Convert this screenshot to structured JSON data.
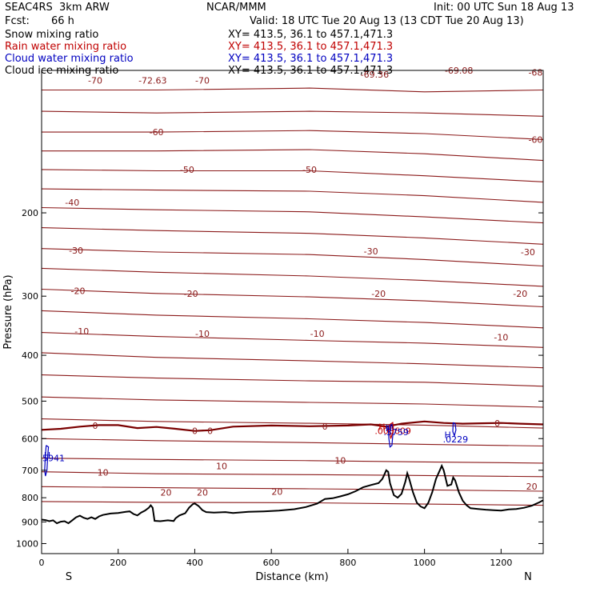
{
  "header": {
    "model": "SEAC4RS  3km ARW",
    "org": "NCAR/MMM",
    "init": "Init: 00 UTC Sun 18 Aug 13",
    "fcst_label": "Fcst:",
    "fcst_value": "66 h",
    "valid": "Valid: 18 UTC Tue 20 Aug 13 (13 CDT Tue 20 Aug 13)",
    "fields": [
      {
        "name": "Snow mixing ratio",
        "xy": "XY= 413.5, 36.1 to 457.1,471.3",
        "color": "#000000"
      },
      {
        "name": "Rain water mixing ratio",
        "xy": "XY= 413.5, 36.1 to 457.1,471.3",
        "color": "#c00000"
      },
      {
        "name": "Cloud water mixing ratio",
        "xy": "XY= 413.5, 36.1 to 457.1,471.3",
        "color": "#0000c0"
      },
      {
        "name": "Cloud ice mixing ratio",
        "xy": "XY= 413.5, 36.1 to 457.1,471.3",
        "color": "#000000"
      }
    ]
  },
  "chart_data": {
    "type": "line",
    "xlabel": "Distance (km)",
    "ylabel": "Pressure (hPa)",
    "xlim": [
      0,
      1310
    ],
    "ylim": [
      1050,
      100
    ],
    "y_scale": "log",
    "x_ticks": [
      0,
      200,
      400,
      600,
      800,
      1000,
      1200
    ],
    "y_ticks": [
      200,
      300,
      400,
      500,
      600,
      700,
      800,
      900,
      1000
    ],
    "x_end_labels": {
      "left": "S",
      "right": "N"
    },
    "isotherm_color": "#8b1a1a",
    "isotherms": [
      {
        "value": -70,
        "p": [
          [
            0,
            110
          ],
          [
            300,
            110
          ],
          [
            700,
            109
          ],
          [
            1000,
            111
          ],
          [
            1310,
            110
          ]
        ]
      },
      {
        "value": -65,
        "p": [
          [
            0,
            122
          ],
          [
            300,
            123
          ],
          [
            700,
            122
          ],
          [
            1000,
            123
          ],
          [
            1310,
            125
          ]
        ]
      },
      {
        "value": -60,
        "p": [
          [
            0,
            135
          ],
          [
            300,
            135
          ],
          [
            700,
            134
          ],
          [
            1000,
            136
          ],
          [
            1310,
            140
          ]
        ]
      },
      {
        "value": -55,
        "p": [
          [
            0,
            148
          ],
          [
            300,
            148
          ],
          [
            700,
            147
          ],
          [
            1000,
            150
          ],
          [
            1310,
            155
          ]
        ]
      },
      {
        "value": -50,
        "p": [
          [
            0,
            162
          ],
          [
            300,
            163
          ],
          [
            700,
            163
          ],
          [
            1000,
            167
          ],
          [
            1310,
            172
          ]
        ]
      },
      {
        "value": -45,
        "p": [
          [
            0,
            178
          ],
          [
            300,
            179
          ],
          [
            700,
            180
          ],
          [
            1000,
            184
          ],
          [
            1310,
            190
          ]
        ]
      },
      {
        "value": -40,
        "p": [
          [
            0,
            195
          ],
          [
            300,
            197
          ],
          [
            700,
            199
          ],
          [
            1000,
            204
          ],
          [
            1310,
            210
          ]
        ]
      },
      {
        "value": -35,
        "p": [
          [
            0,
            215
          ],
          [
            300,
            218
          ],
          [
            700,
            221
          ],
          [
            1000,
            226
          ],
          [
            1310,
            233
          ]
        ]
      },
      {
        "value": -30,
        "p": [
          [
            0,
            238
          ],
          [
            300,
            242
          ],
          [
            700,
            245
          ],
          [
            1000,
            251
          ],
          [
            1310,
            259
          ]
        ]
      },
      {
        "value": -25,
        "p": [
          [
            0,
            262
          ],
          [
            300,
            267
          ],
          [
            700,
            272
          ],
          [
            1000,
            278
          ],
          [
            1310,
            286
          ]
        ]
      },
      {
        "value": -20,
        "p": [
          [
            0,
            290
          ],
          [
            300,
            296
          ],
          [
            700,
            301
          ],
          [
            1000,
            307
          ],
          [
            1310,
            316
          ]
        ]
      },
      {
        "value": -15,
        "p": [
          [
            0,
            322
          ],
          [
            300,
            329
          ],
          [
            700,
            335
          ],
          [
            1000,
            341
          ],
          [
            1310,
            350
          ]
        ]
      },
      {
        "value": -10,
        "p": [
          [
            0,
            358
          ],
          [
            300,
            365
          ],
          [
            700,
            372
          ],
          [
            1000,
            377
          ],
          [
            1310,
            385
          ]
        ]
      },
      {
        "value": -5,
        "p": [
          [
            0,
            395
          ],
          [
            300,
            404
          ],
          [
            700,
            411
          ],
          [
            1000,
            417
          ],
          [
            1310,
            425
          ]
        ]
      },
      {
        "value": 0,
        "p": [
          [
            0,
            440
          ],
          [
            300,
            447
          ],
          [
            700,
            453
          ],
          [
            1000,
            456
          ],
          [
            1310,
            465
          ]
        ]
      },
      {
        "value": 5,
        "p": [
          [
            0,
            490
          ],
          [
            300,
            497
          ],
          [
            700,
            503
          ],
          [
            1000,
            507
          ],
          [
            1310,
            515
          ]
        ]
      },
      {
        "value": 10,
        "p": [
          [
            0,
            545
          ],
          [
            300,
            552
          ],
          [
            700,
            557
          ],
          [
            1000,
            562
          ],
          [
            1310,
            570
          ]
        ]
      },
      {
        "value": 15,
        "p": [
          [
            0,
            600
          ],
          [
            300,
            606
          ],
          [
            700,
            612
          ],
          [
            1000,
            617
          ],
          [
            1310,
            622
          ]
        ]
      },
      {
        "value": 20,
        "p": [
          [
            0,
            660
          ],
          [
            300,
            664
          ],
          [
            700,
            668
          ],
          [
            1000,
            672
          ],
          [
            1310,
            676
          ]
        ]
      },
      {
        "value": 25,
        "p": [
          [
            0,
            705
          ],
          [
            300,
            712
          ],
          [
            700,
            715
          ],
          [
            1000,
            718
          ],
          [
            1310,
            722
          ]
        ]
      },
      {
        "value": 30,
        "p": [
          [
            0,
            758
          ],
          [
            300,
            762
          ],
          [
            700,
            766
          ],
          [
            1000,
            770
          ],
          [
            1310,
            775
          ]
        ]
      },
      {
        "value": 35,
        "p": [
          [
            0,
            815
          ],
          [
            300,
            818
          ],
          [
            700,
            820
          ],
          [
            1000,
            825
          ],
          [
            1310,
            830
          ]
        ]
      }
    ],
    "isotherm_labels": [
      {
        "text": "-70",
        "x": 140,
        "p": 105
      },
      {
        "text": "-72.63",
        "x": 290,
        "p": 105
      },
      {
        "text": "-70",
        "x": 420,
        "p": 105
      },
      {
        "text": "-69.36",
        "x": 870,
        "p": 102
      },
      {
        "text": "-69.08",
        "x": 1090,
        "p": 100
      },
      {
        "text": "-68",
        "x": 1290,
        "p": 101
      },
      {
        "text": "-60",
        "x": 300,
        "p": 135
      },
      {
        "text": "-60",
        "x": 1290,
        "p": 140
      },
      {
        "text": "-50",
        "x": 380,
        "p": 162
      },
      {
        "text": "-50",
        "x": 700,
        "p": 162
      },
      {
        "text": "-40",
        "x": 80,
        "p": 190
      },
      {
        "text": "-30",
        "x": 90,
        "p": 240
      },
      {
        "text": "-30",
        "x": 860,
        "p": 241
      },
      {
        "text": "-30",
        "x": 1270,
        "p": 242
      },
      {
        "text": "-20",
        "x": 95,
        "p": 292
      },
      {
        "text": "-20",
        "x": 390,
        "p": 296
      },
      {
        "text": "-20",
        "x": 880,
        "p": 296
      },
      {
        "text": "-20",
        "x": 1250,
        "p": 296
      },
      {
        "text": "-10",
        "x": 105,
        "p": 356
      },
      {
        "text": "-10",
        "x": 420,
        "p": 360
      },
      {
        "text": "-10",
        "x": 720,
        "p": 360
      },
      {
        "text": "-10",
        "x": 1200,
        "p": 366
      },
      {
        "text": "0",
        "x": 140,
        "p": 563
      },
      {
        "text": "0",
        "x": 400,
        "p": 578
      },
      {
        "text": "0",
        "x": 440,
        "p": 578
      },
      {
        "text": "0",
        "x": 740,
        "p": 565
      },
      {
        "text": "0",
        "x": 1190,
        "p": 557
      },
      {
        "text": "10",
        "x": 160,
        "p": 707
      },
      {
        "text": "10",
        "x": 470,
        "p": 685
      },
      {
        "text": "10",
        "x": 780,
        "p": 667
      },
      {
        "text": "20",
        "x": 325,
        "p": 779
      },
      {
        "text": "20",
        "x": 420,
        "p": 780
      },
      {
        "text": "20",
        "x": 615,
        "p": 776
      },
      {
        "text": "20",
        "x": 1280,
        "p": 757
      }
    ],
    "freezing_level": [
      [
        0,
        575
      ],
      [
        50,
        572
      ],
      [
        100,
        566
      ],
      [
        150,
        562
      ],
      [
        200,
        562
      ],
      [
        250,
        570
      ],
      [
        300,
        567
      ],
      [
        350,
        572
      ],
      [
        400,
        578
      ],
      [
        440,
        576
      ],
      [
        500,
        566
      ],
      [
        600,
        563
      ],
      [
        700,
        565
      ],
      [
        800,
        563
      ],
      [
        860,
        560
      ],
      [
        900,
        566
      ],
      [
        940,
        558
      ],
      [
        1000,
        552
      ],
      [
        1050,
        556
      ],
      [
        1100,
        558
      ],
      [
        1150,
        557
      ],
      [
        1200,
        556
      ],
      [
        1250,
        558
      ],
      [
        1310,
        560
      ]
    ],
    "terrain": [
      [
        0,
        890
      ],
      [
        10,
        892
      ],
      [
        20,
        897
      ],
      [
        30,
        893
      ],
      [
        40,
        906
      ],
      [
        50,
        899
      ],
      [
        60,
        897
      ],
      [
        70,
        906
      ],
      [
        80,
        893
      ],
      [
        90,
        880
      ],
      [
        100,
        873
      ],
      [
        110,
        882
      ],
      [
        120,
        887
      ],
      [
        130,
        880
      ],
      [
        140,
        887
      ],
      [
        150,
        876
      ],
      [
        160,
        870
      ],
      [
        180,
        864
      ],
      [
        200,
        862
      ],
      [
        220,
        857
      ],
      [
        230,
        855
      ],
      [
        240,
        866
      ],
      [
        250,
        872
      ],
      [
        260,
        860
      ],
      [
        270,
        852
      ],
      [
        280,
        840
      ],
      [
        285,
        830
      ],
      [
        290,
        840
      ],
      [
        295,
        895
      ],
      [
        310,
        897
      ],
      [
        330,
        893
      ],
      [
        345,
        896
      ],
      [
        350,
        884
      ],
      [
        360,
        872
      ],
      [
        375,
        863
      ],
      [
        385,
        840
      ],
      [
        395,
        825
      ],
      [
        400,
        823
      ],
      [
        410,
        833
      ],
      [
        420,
        850
      ],
      [
        430,
        858
      ],
      [
        450,
        860
      ],
      [
        480,
        858
      ],
      [
        500,
        862
      ],
      [
        540,
        857
      ],
      [
        580,
        855
      ],
      [
        620,
        852
      ],
      [
        660,
        846
      ],
      [
        690,
        837
      ],
      [
        720,
        823
      ],
      [
        740,
        805
      ],
      [
        760,
        802
      ],
      [
        780,
        795
      ],
      [
        800,
        787
      ],
      [
        820,
        775
      ],
      [
        840,
        760
      ],
      [
        860,
        752
      ],
      [
        880,
        745
      ],
      [
        890,
        730
      ],
      [
        895,
        715
      ],
      [
        900,
        700
      ],
      [
        905,
        705
      ],
      [
        910,
        745
      ],
      [
        920,
        790
      ],
      [
        930,
        800
      ],
      [
        940,
        785
      ],
      [
        950,
        740
      ],
      [
        955,
        710
      ],
      [
        960,
        730
      ],
      [
        970,
        780
      ],
      [
        980,
        820
      ],
      [
        990,
        835
      ],
      [
        1000,
        842
      ],
      [
        1010,
        820
      ],
      [
        1020,
        780
      ],
      [
        1030,
        730
      ],
      [
        1040,
        700
      ],
      [
        1045,
        685
      ],
      [
        1050,
        700
      ],
      [
        1060,
        755
      ],
      [
        1070,
        750
      ],
      [
        1075,
        725
      ],
      [
        1080,
        735
      ],
      [
        1090,
        780
      ],
      [
        1100,
        812
      ],
      [
        1110,
        830
      ],
      [
        1120,
        842
      ],
      [
        1140,
        845
      ],
      [
        1160,
        848
      ],
      [
        1180,
        850
      ],
      [
        1200,
        852
      ],
      [
        1220,
        847
      ],
      [
        1240,
        845
      ],
      [
        1260,
        840
      ],
      [
        1280,
        832
      ],
      [
        1300,
        818
      ],
      [
        1310,
        810
      ]
    ],
    "annotations": [
      {
        "text": "H",
        "x": 6,
        "p": 650,
        "color": "#0000c0"
      },
      {
        "text": "5941",
        "x": 2,
        "p": 660,
        "color": "#0000c0"
      },
      {
        "text": "H",
        "x": 880,
        "p": 567,
        "color": "#c00000"
      },
      {
        "text": ".003609",
        "x": 870,
        "p": 578,
        "color": "#c00000"
      },
      {
        "text": "H",
        "x": 898,
        "p": 570,
        "color": "#0000c0"
      },
      {
        "text": ".3759",
        "x": 893,
        "p": 581,
        "color": "#0000c0"
      },
      {
        "text": "H",
        "x": 1052,
        "p": 589,
        "color": "#0000c0"
      },
      {
        "text": ".0229",
        "x": 1048,
        "p": 602,
        "color": "#0000c0"
      }
    ],
    "cloud_contours": [
      {
        "color": "#0000c0",
        "p": [
          [
            12,
            620
          ],
          [
            18,
            625
          ],
          [
            16,
            650
          ],
          [
            14,
            700
          ],
          [
            10,
            720
          ],
          [
            8,
            700
          ],
          [
            10,
            650
          ],
          [
            12,
            620
          ]
        ]
      },
      {
        "color": "#0000c0",
        "p": [
          [
            905,
            565
          ],
          [
            915,
            560
          ],
          [
            918,
            580
          ],
          [
            915,
            620
          ],
          [
            910,
            625
          ],
          [
            907,
            600
          ],
          [
            905,
            565
          ]
        ]
      },
      {
        "color": "#c00000",
        "p": [
          [
            910,
            560
          ],
          [
            917,
            555
          ],
          [
            919,
            575
          ],
          [
            912,
            600
          ],
          [
            908,
            575
          ],
          [
            910,
            560
          ]
        ]
      },
      {
        "color": "#0000c0",
        "p": [
          [
            1075,
            555
          ],
          [
            1080,
            558
          ],
          [
            1082,
            575
          ],
          [
            1078,
            592
          ],
          [
            1074,
            580
          ],
          [
            1075,
            555
          ]
        ]
      }
    ]
  }
}
